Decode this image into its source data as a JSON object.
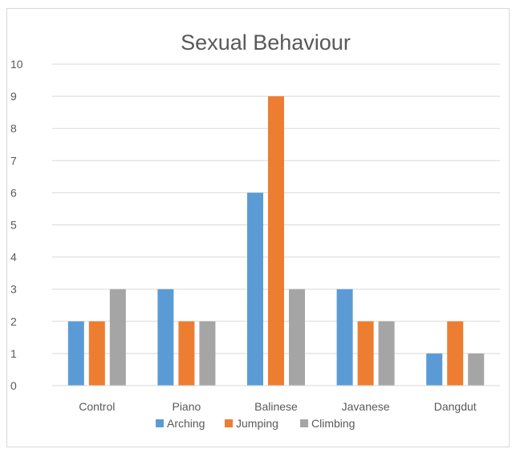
{
  "chart_data": {
    "type": "bar",
    "title": "Sexual Behaviour",
    "xlabel": "",
    "ylabel": "",
    "categories": [
      "Control",
      "Piano",
      "Balinese",
      "Javanese",
      "Dangdut"
    ],
    "series": [
      {
        "name": "Arching",
        "values": [
          2,
          3,
          6,
          3,
          1
        ],
        "color": "#5B9BD5"
      },
      {
        "name": "Jumping",
        "values": [
          2,
          2,
          9,
          2,
          2
        ],
        "color": "#ED7D31"
      },
      {
        "name": "Climbing",
        "values": [
          3,
          2,
          3,
          2,
          1
        ],
        "color": "#A5A5A5"
      }
    ],
    "ylim": [
      0,
      10
    ],
    "yticks": [
      0,
      1,
      2,
      3,
      4,
      5,
      6,
      7,
      8,
      9,
      10
    ],
    "grid": true,
    "legend_position": "bottom"
  }
}
